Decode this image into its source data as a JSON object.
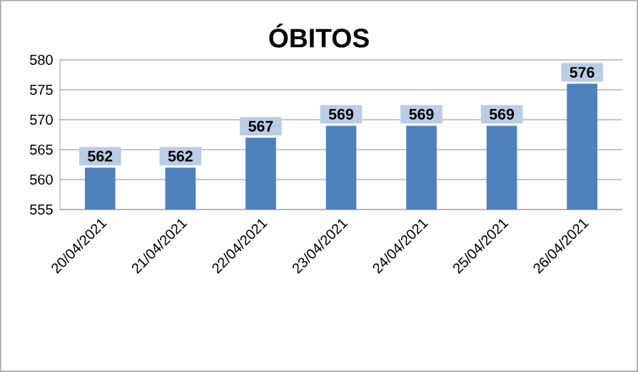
{
  "chart_data": {
    "type": "bar",
    "title": "ÓBITOS",
    "categories": [
      "20/04/2021",
      "21/04/2021",
      "22/04/2021",
      "23/04/2021",
      "24/04/2021",
      "25/04/2021",
      "26/04/2021"
    ],
    "values": [
      562,
      562,
      567,
      569,
      569,
      569,
      576
    ],
    "color": "#4f81bd",
    "ylim": [
      555,
      580
    ],
    "yticks": [
      555,
      560,
      565,
      570,
      575,
      580
    ],
    "grid": "y",
    "data_labels": true
  }
}
